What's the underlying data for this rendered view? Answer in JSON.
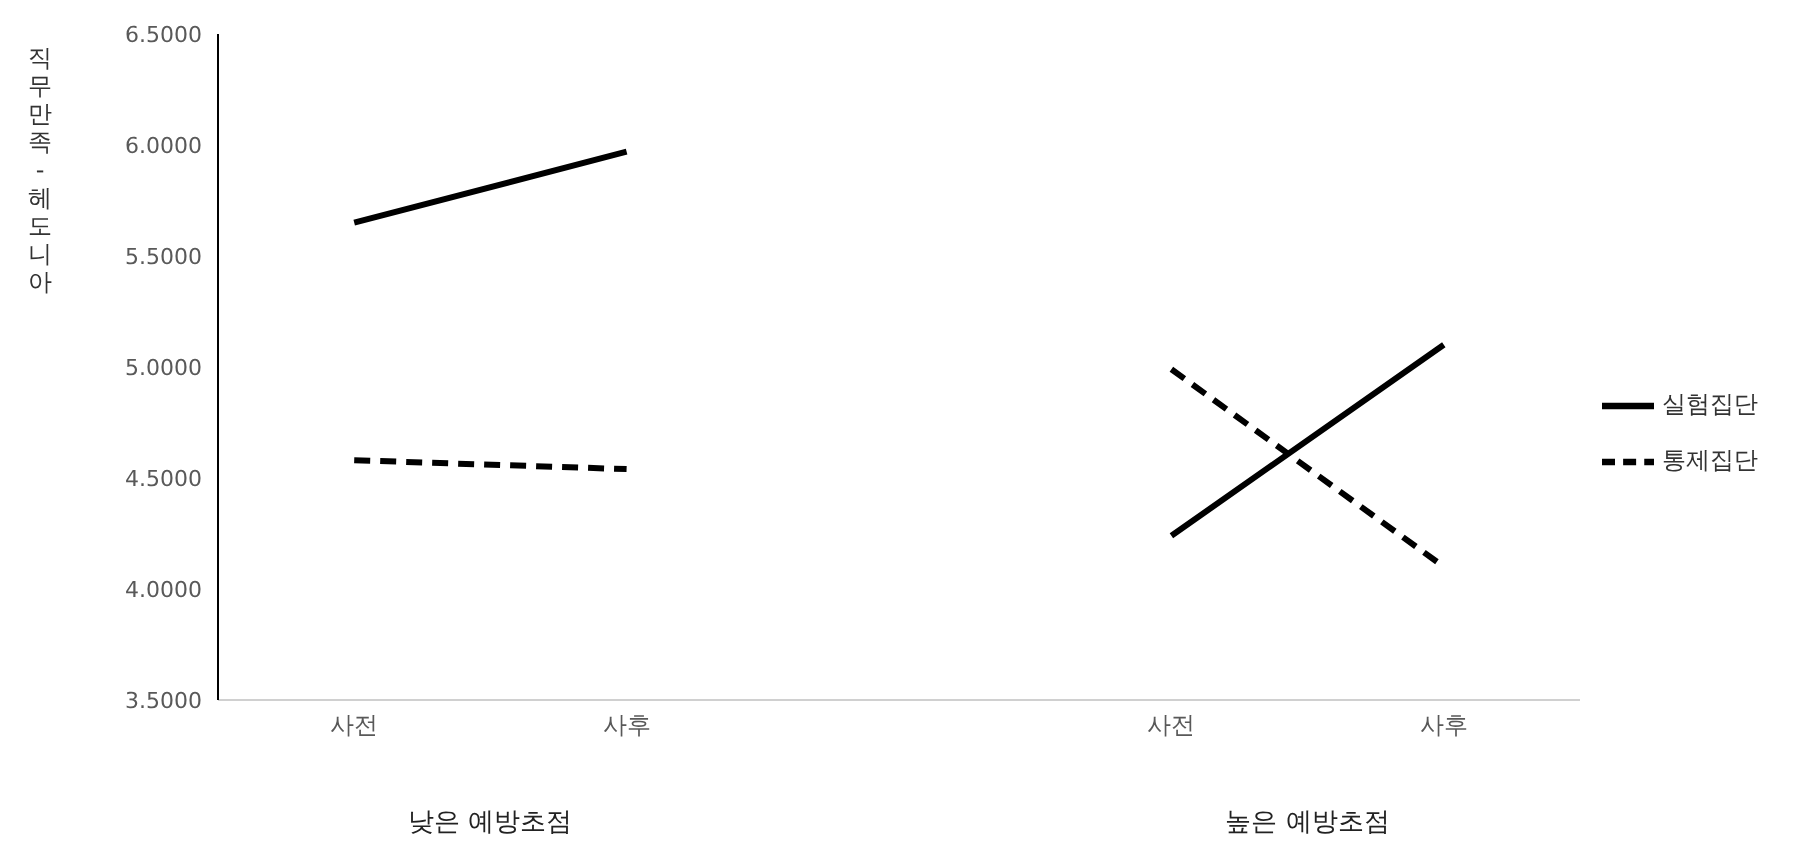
{
  "chart_data": {
    "type": "line",
    "ylabel": "직무만족-헤도니아",
    "categories": [
      "사전",
      "사후",
      null,
      "사전",
      "사후"
    ],
    "series": [
      {
        "name": "실험집단",
        "color": "#000000",
        "line_style": "solid",
        "values": [
          5.65,
          5.97,
          null,
          4.24,
          5.1
        ]
      },
      {
        "name": "통제집단",
        "color": "#000000",
        "line_style": "dashed",
        "values": [
          4.58,
          4.54,
          null,
          4.99,
          4.1
        ]
      }
    ],
    "ylim": [
      3.5,
      6.5
    ],
    "yticks": [
      {
        "value": 3.5,
        "label": "3.5000"
      },
      {
        "value": 4,
        "label": "4.0000"
      },
      {
        "value": 4.5,
        "label": "4.5000"
      },
      {
        "value": 5,
        "label": "5.0000"
      },
      {
        "value": 5.5,
        "label": "5.5000"
      },
      {
        "value": 6,
        "label": "6.0000"
      },
      {
        "value": 6.5,
        "label": "6.5000"
      }
    ],
    "annotations": [
      "낮은 예방초점",
      "높은 예방초점"
    ],
    "legend": "right",
    "grid": false,
    "marker": "none"
  }
}
